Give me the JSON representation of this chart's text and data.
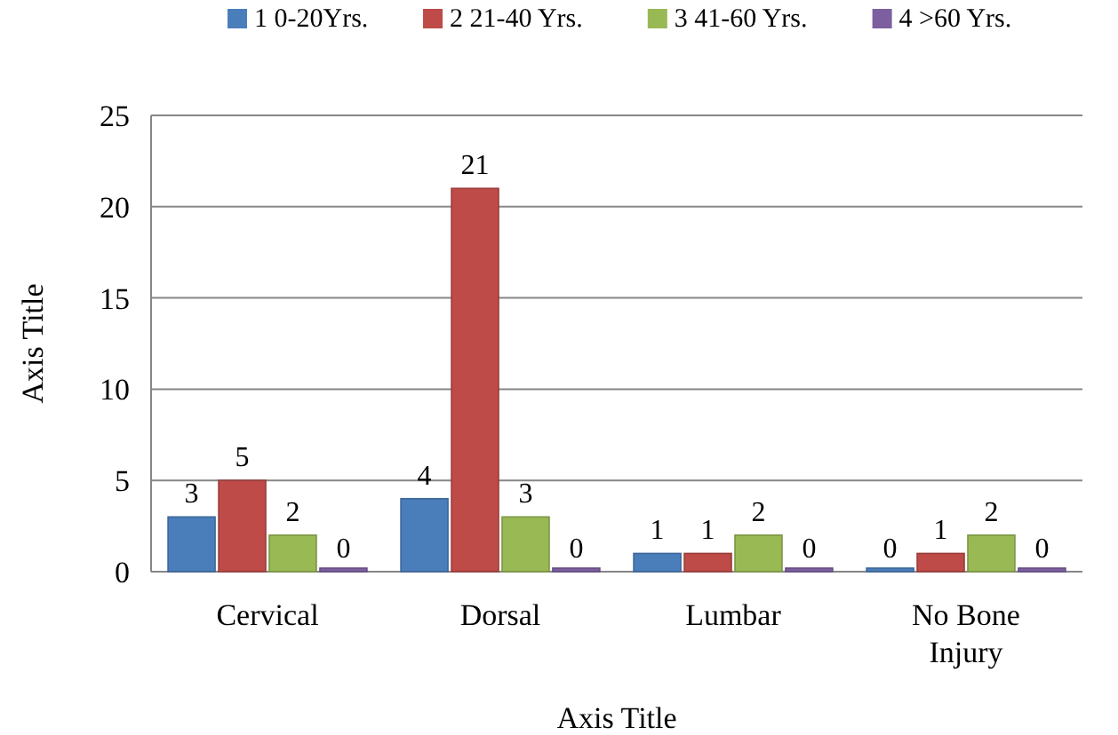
{
  "chart_data": {
    "type": "bar",
    "xlabel": "Axis Title",
    "ylabel": "Axis Title",
    "categories": [
      "Cervical",
      "Dorsal",
      "Lumbar",
      "No Bone Injury"
    ],
    "series": [
      {
        "name": "1 0-20Yrs.",
        "color": "#4a7ebb",
        "values": [
          3,
          4,
          1,
          0
        ]
      },
      {
        "name": "2 21-40 Yrs.",
        "color": "#be4b48",
        "values": [
          5,
          21,
          1,
          1
        ]
      },
      {
        "name": "3 41-60 Yrs.",
        "color": "#98b954",
        "values": [
          2,
          3,
          2,
          2
        ]
      },
      {
        "name": "4 >60 Yrs.",
        "color": "#7d5fa0",
        "values": [
          0,
          0,
          0,
          0
        ]
      }
    ],
    "ylim": [
      0,
      25
    ],
    "yticks": [
      0,
      5,
      10,
      15,
      20,
      25
    ],
    "grid": "y",
    "legend": "top",
    "data_labels": true
  }
}
